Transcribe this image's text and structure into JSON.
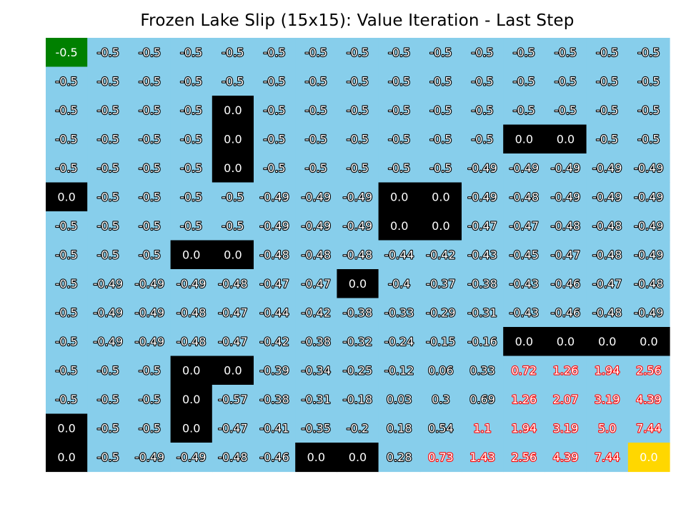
{
  "chart_data": {
    "type": "heatmap",
    "title": "Frozen Lake Slip (15x15): Value Iteration - Last Step",
    "rows": 15,
    "cols": 15,
    "start": [
      0,
      0
    ],
    "goal": [
      14,
      14
    ],
    "values": [
      [
        "-0.5",
        "-0.5",
        "-0.5",
        "-0.5",
        "-0.5",
        "-0.5",
        "-0.5",
        "-0.5",
        "-0.5",
        "-0.5",
        "-0.5",
        "-0.5",
        "-0.5",
        "-0.5",
        "-0.5"
      ],
      [
        "-0.5",
        "-0.5",
        "-0.5",
        "-0.5",
        "-0.5",
        "-0.5",
        "-0.5",
        "-0.5",
        "-0.5",
        "-0.5",
        "-0.5",
        "-0.5",
        "-0.5",
        "-0.5",
        "-0.5"
      ],
      [
        "-0.5",
        "-0.5",
        "-0.5",
        "-0.5",
        "0.0",
        "-0.5",
        "-0.5",
        "-0.5",
        "-0.5",
        "-0.5",
        "-0.5",
        "-0.5",
        "-0.5",
        "-0.5",
        "-0.5"
      ],
      [
        "-0.5",
        "-0.5",
        "-0.5",
        "-0.5",
        "0.0",
        "-0.5",
        "-0.5",
        "-0.5",
        "-0.5",
        "-0.5",
        "-0.5",
        "0.0",
        "0.0",
        "-0.5",
        "-0.5"
      ],
      [
        "-0.5",
        "-0.5",
        "-0.5",
        "-0.5",
        "0.0",
        "-0.5",
        "-0.5",
        "-0.5",
        "-0.5",
        "-0.5",
        "-0.49",
        "-0.49",
        "-0.49",
        "-0.49",
        "-0.49"
      ],
      [
        "0.0",
        "-0.5",
        "-0.5",
        "-0.5",
        "-0.5",
        "-0.49",
        "-0.49",
        "-0.49",
        "0.0",
        "0.0",
        "-0.49",
        "-0.48",
        "-0.49",
        "-0.49",
        "-0.49"
      ],
      [
        "-0.5",
        "-0.5",
        "-0.5",
        "-0.5",
        "-0.5",
        "-0.49",
        "-0.49",
        "-0.49",
        "0.0",
        "0.0",
        "-0.47",
        "-0.47",
        "-0.48",
        "-0.48",
        "-0.49"
      ],
      [
        "-0.5",
        "-0.5",
        "-0.5",
        "0.0",
        "0.0",
        "-0.48",
        "-0.48",
        "-0.48",
        "-0.44",
        "-0.42",
        "-0.43",
        "-0.45",
        "-0.47",
        "-0.48",
        "-0.49"
      ],
      [
        "-0.5",
        "-0.49",
        "-0.49",
        "-0.49",
        "-0.48",
        "-0.47",
        "-0.47",
        "0.0",
        "-0.4",
        "-0.37",
        "-0.38",
        "-0.43",
        "-0.46",
        "-0.47",
        "-0.48"
      ],
      [
        "-0.5",
        "-0.49",
        "-0.49",
        "-0.48",
        "-0.47",
        "-0.44",
        "-0.42",
        "-0.38",
        "-0.33",
        "-0.29",
        "-0.31",
        "-0.43",
        "-0.46",
        "-0.48",
        "-0.49"
      ],
      [
        "-0.5",
        "-0.49",
        "-0.49",
        "-0.48",
        "-0.47",
        "-0.42",
        "-0.38",
        "-0.32",
        "-0.24",
        "-0.15",
        "-0.16",
        "0.0",
        "0.0",
        "0.0",
        "0.0"
      ],
      [
        "-0.5",
        "-0.5",
        "-0.5",
        "0.0",
        "0.0",
        "-0.39",
        "-0.34",
        "-0.25",
        "-0.12",
        "0.06",
        "0.33",
        "0.72",
        "1.26",
        "1.94",
        "2.56"
      ],
      [
        "-0.5",
        "-0.5",
        "-0.5",
        "0.0",
        "-0.57",
        "-0.38",
        "-0.31",
        "-0.18",
        "0.03",
        "0.3",
        "0.69",
        "1.26",
        "2.07",
        "3.19",
        "4.39"
      ],
      [
        "0.0",
        "-0.5",
        "-0.5",
        "0.0",
        "-0.47",
        "-0.41",
        "-0.35",
        "-0.2",
        "0.18",
        "0.54",
        "1.1",
        "1.94",
        "3.19",
        "5.0",
        "7.44"
      ],
      [
        "0.0",
        "-0.5",
        "-0.49",
        "-0.49",
        "-0.48",
        "-0.46",
        "0.0",
        "0.0",
        "0.28",
        "0.73",
        "1.43",
        "2.56",
        "4.39",
        "7.44",
        "0.0"
      ]
    ],
    "holes": [
      [
        2,
        4
      ],
      [
        3,
        4
      ],
      [
        4,
        4
      ],
      [
        3,
        11
      ],
      [
        3,
        12
      ],
      [
        5,
        0
      ],
      [
        5,
        8
      ],
      [
        5,
        9
      ],
      [
        6,
        8
      ],
      [
        6,
        9
      ],
      [
        7,
        3
      ],
      [
        7,
        4
      ],
      [
        8,
        7
      ],
      [
        10,
        11
      ],
      [
        10,
        12
      ],
      [
        10,
        13
      ],
      [
        10,
        14
      ],
      [
        11,
        3
      ],
      [
        11,
        4
      ],
      [
        12,
        3
      ],
      [
        13,
        0
      ],
      [
        13,
        3
      ],
      [
        14,
        0
      ],
      [
        14,
        6
      ],
      [
        14,
        7
      ]
    ],
    "colors": {
      "frozen": "#87ceeb",
      "hole": "#000000",
      "start": "#008000",
      "goal": "#ffd700",
      "text": "#ffffff",
      "outline_normal": "#000000",
      "outline_high": "#ff0000"
    }
  }
}
